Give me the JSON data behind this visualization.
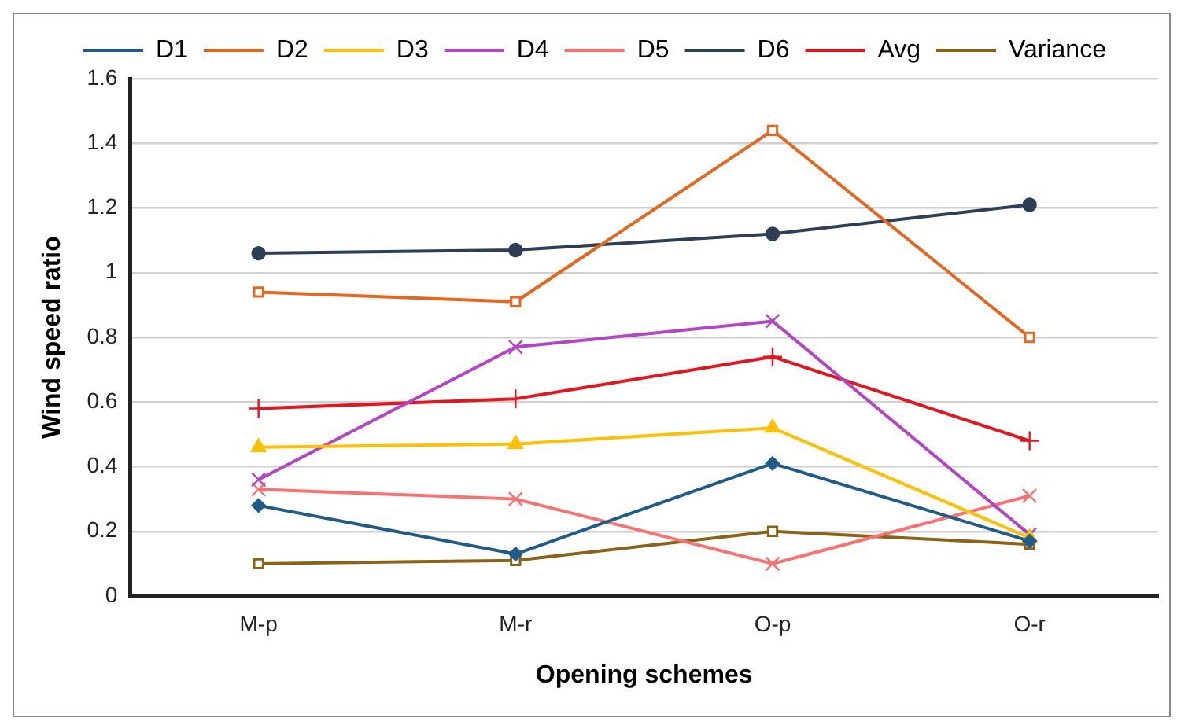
{
  "chart_data": {
    "type": "line",
    "xlabel": "Opening schemes",
    "ylabel": "Wind speed ratio",
    "categories": [
      "M-p",
      "M-r",
      "O-p",
      "O-r"
    ],
    "series": [
      {
        "name": "D1",
        "color": "#1f5c8a",
        "marker": "diamond",
        "values": [
          0.28,
          0.13,
          0.41,
          0.17
        ]
      },
      {
        "name": "D2",
        "color": "#e8661c",
        "marker": "square",
        "values": [
          0.94,
          0.91,
          1.44,
          0.8
        ]
      },
      {
        "name": "D3",
        "color": "#ffc000",
        "marker": "triangle",
        "values": [
          0.46,
          0.47,
          0.52,
          0.18
        ]
      },
      {
        "name": "D4",
        "color": "#b543c8",
        "marker": "cross",
        "values": [
          0.36,
          0.77,
          0.85,
          0.19
        ]
      },
      {
        "name": "D5",
        "color": "#ff6f6f",
        "marker": "cross",
        "values": [
          0.33,
          0.3,
          0.1,
          0.31
        ]
      },
      {
        "name": "D6",
        "color": "#2e3f55",
        "marker": "circle",
        "values": [
          1.06,
          1.07,
          1.12,
          1.21
        ]
      },
      {
        "name": "Avg",
        "color": "#e8141c",
        "marker": "plus",
        "values": [
          0.58,
          0.61,
          0.74,
          0.48
        ]
      },
      {
        "name": "Variance",
        "color": "#8a6414",
        "marker": "square",
        "values": [
          0.1,
          0.11,
          0.2,
          0.16
        ]
      }
    ],
    "ylim": [
      0,
      1.6
    ],
    "yticks": [
      0,
      0.2,
      0.4,
      0.6,
      0.8,
      1,
      1.2,
      1.4,
      1.6
    ],
    "grid": "y",
    "legend": "top"
  }
}
